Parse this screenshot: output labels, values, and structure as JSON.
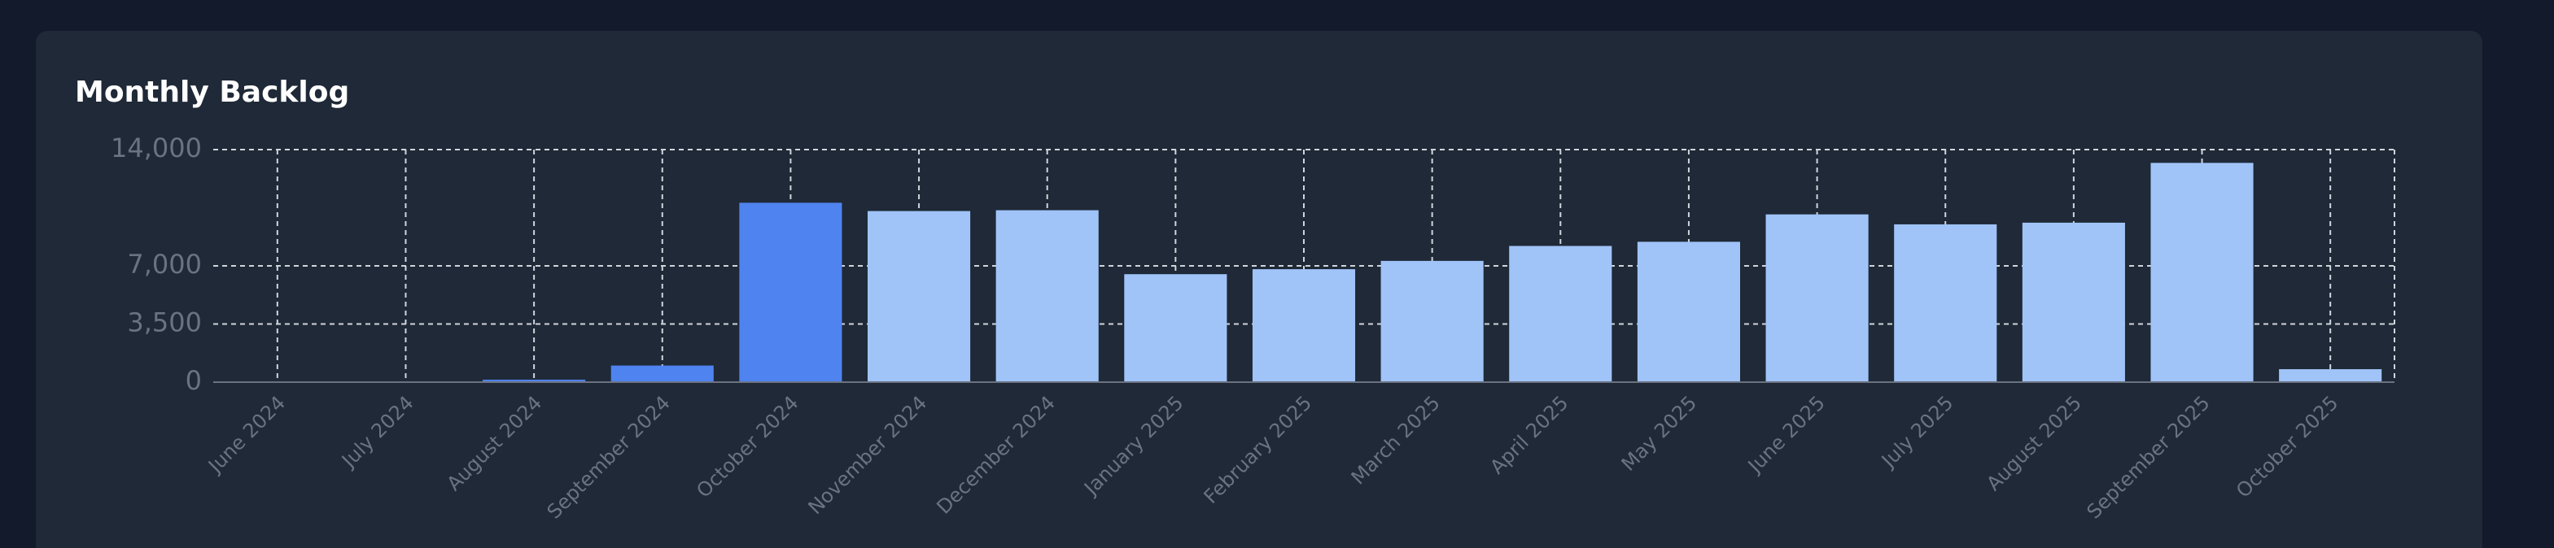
{
  "chart_data": {
    "type": "bar",
    "title": "Monthly Backlog",
    "categories": [
      "June 2024",
      "July 2024",
      "August 2024",
      "September 2024",
      "October 2024",
      "November 2024",
      "December 2024",
      "January 2025",
      "February 2025",
      "March 2025",
      "April 2025",
      "May 2025",
      "June 2025",
      "July 2025",
      "August 2025",
      "September 2025",
      "October 2025"
    ],
    "values": [
      0,
      50,
      150,
      1000,
      10800,
      10300,
      10350,
      6500,
      6800,
      7300,
      8200,
      8450,
      10100,
      9500,
      9600,
      13200,
      780
    ],
    "colors": [
      "#4f83f0",
      "#4f83f0",
      "#4f83f0",
      "#4f83f0",
      "#4f83f0",
      "#a0c4f8",
      "#a0c4f8",
      "#a0c4f8",
      "#a0c4f8",
      "#a0c4f8",
      "#a0c4f8",
      "#a0c4f8",
      "#a0c4f8",
      "#a0c4f8",
      "#a0c4f8",
      "#a0c4f8",
      "#a0c4f8"
    ],
    "ylim": [
      0,
      14000
    ],
    "yticks": [
      0,
      {
        "value": 3500,
        "label": "3,500"
      },
      {
        "value": 7000,
        "label": "7,000"
      },
      {
        "value": 14000,
        "label": "14,000"
      }
    ],
    "grid": true
  }
}
